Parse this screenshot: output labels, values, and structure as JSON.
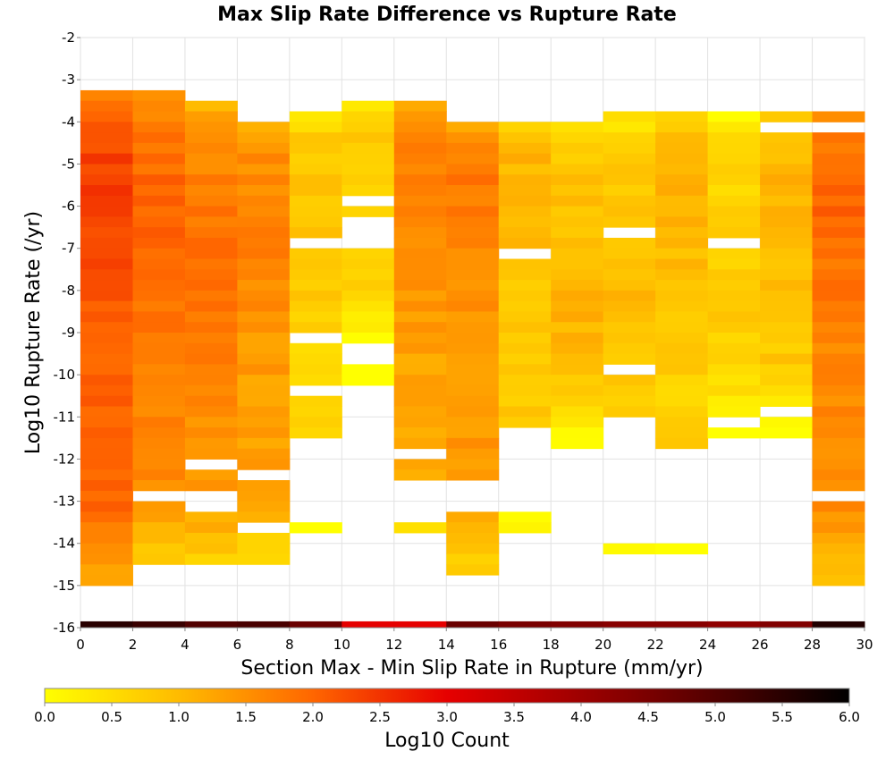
{
  "chart_data": {
    "type": "heatmap",
    "title": "Max Slip Rate Difference vs Rupture Rate",
    "xlabel": "Section Max - Min Slip Rate in Rupture (mm/yr)",
    "ylabel": "Log10 Rupture Rate (/yr)",
    "xlim": [
      0,
      30
    ],
    "ylim": [
      -16,
      -2
    ],
    "x_ticks": [
      "0",
      "2",
      "4",
      "6",
      "8",
      "10",
      "12",
      "14",
      "16",
      "18",
      "20",
      "22",
      "24",
      "26",
      "28",
      "30"
    ],
    "y_ticks": [
      "-2",
      "-3",
      "-4",
      "-5",
      "-6",
      "-7",
      "-8",
      "-9",
      "-10",
      "-11",
      "-12",
      "-13",
      "-14",
      "-15",
      "-16"
    ],
    "x_bin_width": 2,
    "y_bin_height": 0.25,
    "grid": true,
    "colorbar": {
      "label": "Log10 Count",
      "range": [
        0,
        6
      ],
      "ticks": [
        "0.0",
        "0.5",
        "1.0",
        "1.5",
        "2.0",
        "2.5",
        "3.0",
        "3.5",
        "4.0",
        "4.5",
        "5.0",
        "5.5",
        "6.0"
      ],
      "stops": [
        {
          "v": 0.0,
          "color": "#ffff00"
        },
        {
          "v": 1.0,
          "color": "#ffbb00"
        },
        {
          "v": 2.0,
          "color": "#ff6600"
        },
        {
          "v": 3.0,
          "color": "#e60000"
        },
        {
          "v": 4.5,
          "color": "#7a0000"
        },
        {
          "v": 6.0,
          "color": "#000000"
        }
      ]
    },
    "columns": [
      {
        "x": 0,
        "top": -3.25,
        "bottom": -15.0,
        "empty": [],
        "base": 2.0,
        "peak": 2.4,
        "peak_y": -5.5
      },
      {
        "x": 2,
        "top": -3.25,
        "bottom": -14.5,
        "empty": [
          [
            -12.75,
            -13.0
          ]
        ],
        "base": 1.6,
        "peak": 2.1,
        "peak_y": -6.5
      },
      {
        "x": 4,
        "top": -3.5,
        "bottom": -14.5,
        "empty": [
          [
            -12.0,
            -12.25
          ],
          [
            -12.75,
            -13.25
          ]
        ],
        "base": 1.5,
        "peak": 1.9,
        "peak_y": -7.5
      },
      {
        "x": 6,
        "top": -4.0,
        "bottom": -14.5,
        "empty": [
          [
            -12.25,
            -12.5
          ],
          [
            -13.5,
            -13.75
          ]
        ],
        "base": 1.3,
        "peak": 1.7,
        "peak_y": -6.5
      },
      {
        "x": 8,
        "top": -3.75,
        "bottom": -13.75,
        "empty": [
          [
            -6.75,
            -7.0
          ],
          [
            -9.0,
            -9.25
          ],
          [
            -10.25,
            -10.5
          ],
          [
            -11.5,
            -11.75
          ],
          [
            -11.75,
            -13.5
          ]
        ],
        "base": 0.6,
        "peak": 0.9,
        "peak_y": -6.0
      },
      {
        "x": 10,
        "top": -3.5,
        "bottom": -10.25,
        "empty": [
          [
            -5.75,
            -6.0
          ],
          [
            -6.25,
            -7.0
          ],
          [
            -9.25,
            -9.75
          ]
        ],
        "base": 0.5,
        "peak": 0.8,
        "peak_y": -5.0
      },
      {
        "x": 12,
        "top": -3.5,
        "bottom": -13.75,
        "empty": [
          [
            -11.75,
            -12.0
          ],
          [
            -12.5,
            -13.5
          ]
        ],
        "base": 1.3,
        "peak": 1.7,
        "peak_y": -5.5
      },
      {
        "x": 14,
        "top": -4.0,
        "bottom": -14.75,
        "empty": [
          [
            -12.5,
            -13.25
          ]
        ],
        "base": 1.4,
        "peak": 1.8,
        "peak_y": -5.5
      },
      {
        "x": 16,
        "top": -4.0,
        "bottom": -13.75,
        "empty": [
          [
            -7.0,
            -7.25
          ],
          [
            -11.25,
            -13.25
          ]
        ],
        "base": 0.8,
        "peak": 1.1,
        "peak_y": -4.75
      },
      {
        "x": 18,
        "top": -4.0,
        "bottom": -11.75,
        "empty": [],
        "base": 0.8,
        "peak": 1.1,
        "peak_y": -8.5
      },
      {
        "x": 20,
        "top": -3.75,
        "bottom": -14.25,
        "empty": [
          [
            -6.5,
            -6.75
          ],
          [
            -9.75,
            -10.0
          ],
          [
            -11.0,
            -14.0
          ]
        ],
        "base": 0.7,
        "peak": 1.0,
        "peak_y": -8.0
      },
      {
        "x": 22,
        "top": -3.75,
        "bottom": -14.25,
        "empty": [
          [
            -11.75,
            -14.0
          ]
        ],
        "base": 0.7,
        "peak": 1.1,
        "peak_y": -6.0
      },
      {
        "x": 24,
        "top": -3.75,
        "bottom": -11.75,
        "empty": [
          [
            -6.75,
            -7.0
          ],
          [
            -11.0,
            -11.25
          ],
          [
            -11.5,
            -16.0
          ]
        ],
        "base": 0.5,
        "peak": 0.8,
        "peak_y": -8.0
      },
      {
        "x": 26,
        "top": -3.75,
        "bottom": -11.5,
        "empty": [
          [
            -4.0,
            -4.25
          ],
          [
            -10.75,
            -11.0
          ]
        ],
        "base": 0.8,
        "peak": 1.1,
        "peak_y": -5.5
      },
      {
        "x": 28,
        "top": -3.75,
        "bottom": -15.0,
        "empty": [
          [
            -4.0,
            -4.25
          ],
          [
            -12.75,
            -13.0
          ]
        ],
        "base": 1.6,
        "peak": 2.0,
        "peak_y": -6.0
      }
    ],
    "bottom_row": {
      "y": -16.0,
      "values": [
        5.5,
        5.3,
        5.0,
        5.1,
        4.7,
        3.0,
        3.0,
        4.7,
        4.5,
        4.4,
        4.3,
        4.3,
        4.2,
        4.4,
        5.6
      ]
    }
  }
}
